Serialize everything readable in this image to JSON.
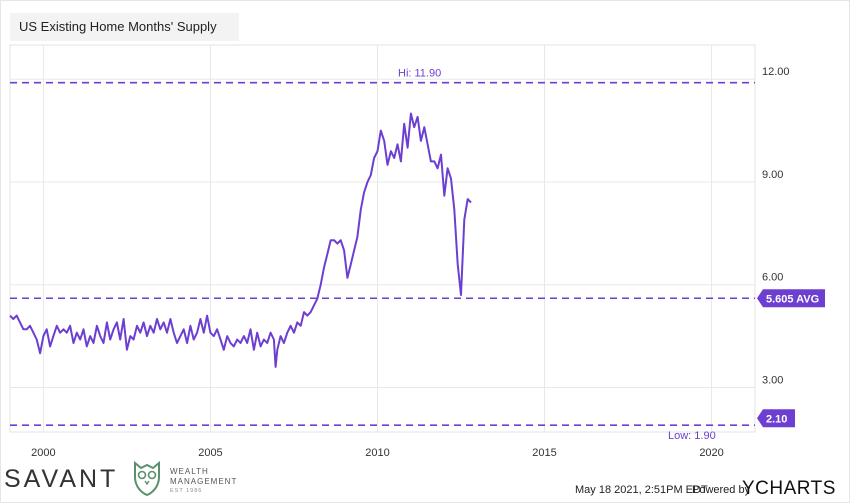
{
  "chart_data": {
    "type": "line",
    "title": "US Existing Home Months' Supply",
    "x_tick_labels": [
      "2000",
      "2005",
      "2010",
      "2015",
      "2020"
    ],
    "y_tick_labels": [
      "3.00",
      "6.00",
      "9.00",
      "12.00"
    ],
    "xlim": [
      1999.0,
      2021.3
    ],
    "ylim": [
      1.7,
      13.0
    ],
    "grid": true,
    "reference_lines": {
      "high": {
        "value": 11.9,
        "label": "Hi: 11.90"
      },
      "average": {
        "value": 5.605,
        "label": "5.605 AVG"
      },
      "low": {
        "value": 1.9,
        "label": "Low: 1.90"
      }
    },
    "last_value_label": "2.10",
    "series": [
      {
        "color": "#6d3fd1",
        "points": [
          [
            1999.0,
            5.1
          ],
          [
            1999.1,
            5.0
          ],
          [
            1999.2,
            5.1
          ],
          [
            1999.3,
            4.9
          ],
          [
            1999.4,
            4.7
          ],
          [
            1999.5,
            4.7
          ],
          [
            1999.6,
            4.8
          ],
          [
            1999.7,
            4.6
          ],
          [
            1999.8,
            4.4
          ],
          [
            1999.9,
            4.0
          ],
          [
            2000.0,
            4.5
          ],
          [
            2000.1,
            4.7
          ],
          [
            2000.2,
            4.2
          ],
          [
            2000.3,
            4.5
          ],
          [
            2000.4,
            4.8
          ],
          [
            2000.5,
            4.6
          ],
          [
            2000.6,
            4.7
          ],
          [
            2000.7,
            4.6
          ],
          [
            2000.8,
            4.8
          ],
          [
            2000.9,
            4.3
          ],
          [
            2001.0,
            4.6
          ],
          [
            2001.1,
            4.4
          ],
          [
            2001.2,
            4.7
          ],
          [
            2001.3,
            4.2
          ],
          [
            2001.4,
            4.5
          ],
          [
            2001.5,
            4.3
          ],
          [
            2001.6,
            4.8
          ],
          [
            2001.7,
            4.5
          ],
          [
            2001.8,
            4.3
          ],
          [
            2001.9,
            4.9
          ],
          [
            2002.0,
            4.4
          ],
          [
            2002.1,
            4.7
          ],
          [
            2002.2,
            4.9
          ],
          [
            2002.3,
            4.4
          ],
          [
            2002.4,
            5.0
          ],
          [
            2002.5,
            4.1
          ],
          [
            2002.6,
            4.5
          ],
          [
            2002.7,
            4.4
          ],
          [
            2002.8,
            4.8
          ],
          [
            2002.9,
            4.6
          ],
          [
            2003.0,
            4.9
          ],
          [
            2003.1,
            4.5
          ],
          [
            2003.2,
            4.8
          ],
          [
            2003.3,
            4.6
          ],
          [
            2003.4,
            5.0
          ],
          [
            2003.5,
            4.7
          ],
          [
            2003.6,
            4.9
          ],
          [
            2003.7,
            4.6
          ],
          [
            2003.8,
            5.0
          ],
          [
            2003.9,
            4.6
          ],
          [
            2004.0,
            4.3
          ],
          [
            2004.1,
            4.5
          ],
          [
            2004.2,
            4.7
          ],
          [
            2004.3,
            4.3
          ],
          [
            2004.4,
            4.8
          ],
          [
            2004.5,
            4.4
          ],
          [
            2004.6,
            4.6
          ],
          [
            2004.7,
            5.0
          ],
          [
            2004.8,
            4.6
          ],
          [
            2004.9,
            5.1
          ],
          [
            2005.0,
            4.6
          ],
          [
            2005.1,
            4.5
          ],
          [
            2005.2,
            4.7
          ],
          [
            2005.3,
            4.4
          ],
          [
            2005.4,
            4.1
          ],
          [
            2005.5,
            4.5
          ],
          [
            2005.6,
            4.3
          ],
          [
            2005.7,
            4.2
          ],
          [
            2005.8,
            4.4
          ],
          [
            2005.9,
            4.3
          ],
          [
            2006.0,
            4.5
          ],
          [
            2006.1,
            4.3
          ],
          [
            2006.2,
            4.7
          ],
          [
            2006.3,
            4.1
          ],
          [
            2006.4,
            4.6
          ],
          [
            2006.5,
            4.2
          ],
          [
            2006.6,
            4.4
          ],
          [
            2006.7,
            4.3
          ],
          [
            2006.8,
            4.6
          ],
          [
            2006.9,
            4.4
          ],
          [
            2006.95,
            3.6
          ],
          [
            2007.0,
            4.1
          ],
          [
            2007.1,
            4.5
          ],
          [
            2007.2,
            4.3
          ],
          [
            2007.3,
            4.6
          ],
          [
            2007.4,
            4.8
          ],
          [
            2007.5,
            4.6
          ],
          [
            2007.6,
            4.9
          ],
          [
            2007.7,
            4.8
          ],
          [
            2007.8,
            5.2
          ],
          [
            2007.9,
            5.1
          ],
          [
            2008.0,
            5.2
          ],
          [
            2008.1,
            5.4
          ],
          [
            2008.2,
            5.6
          ],
          [
            2008.3,
            6.0
          ],
          [
            2008.4,
            6.5
          ],
          [
            2008.5,
            6.9
          ],
          [
            2008.6,
            7.3
          ],
          [
            2008.7,
            7.3
          ],
          [
            2008.8,
            7.2
          ],
          [
            2008.9,
            7.3
          ],
          [
            2009.0,
            7.0
          ],
          [
            2009.1,
            6.2
          ],
          [
            2009.2,
            6.6
          ],
          [
            2009.3,
            7.0
          ],
          [
            2009.4,
            7.4
          ],
          [
            2009.5,
            8.2
          ],
          [
            2009.6,
            8.7
          ],
          [
            2009.7,
            9.0
          ],
          [
            2009.8,
            9.2
          ],
          [
            2009.9,
            9.7
          ],
          [
            2010.0,
            9.9
          ],
          [
            2010.1,
            10.5
          ],
          [
            2010.2,
            10.2
          ],
          [
            2010.3,
            9.5
          ],
          [
            2010.4,
            9.9
          ],
          [
            2010.5,
            9.7
          ],
          [
            2010.6,
            10.1
          ],
          [
            2010.7,
            9.6
          ],
          [
            2010.8,
            10.7
          ],
          [
            2010.9,
            10.0
          ],
          [
            2011.0,
            11.0
          ],
          [
            2011.1,
            10.6
          ],
          [
            2011.2,
            10.9
          ],
          [
            2011.3,
            10.2
          ],
          [
            2011.4,
            10.6
          ],
          [
            2011.5,
            10.1
          ],
          [
            2011.6,
            9.6
          ],
          [
            2011.7,
            9.6
          ],
          [
            2011.8,
            9.4
          ],
          [
            2011.9,
            9.8
          ],
          [
            2012.0,
            8.6
          ],
          [
            2012.1,
            9.4
          ],
          [
            2012.2,
            9.1
          ],
          [
            2012.3,
            8.2
          ],
          [
            2012.4,
            6.6
          ],
          [
            2012.5,
            5.7
          ],
          [
            2012.6,
            7.9
          ],
          [
            2012.7,
            8.5
          ],
          [
            2012.8,
            8.4
          ]
        ]
      }
    ]
  },
  "footer": {
    "brand": "SAVANT",
    "wealth_line1": "WEALTH",
    "wealth_line2": "MANAGEMENT",
    "est": "EST 1986",
    "timestamp": "May 18 2021, 2:51PM EDT.",
    "powered_by": "Powered by",
    "ycharts": "YCHARTS"
  }
}
